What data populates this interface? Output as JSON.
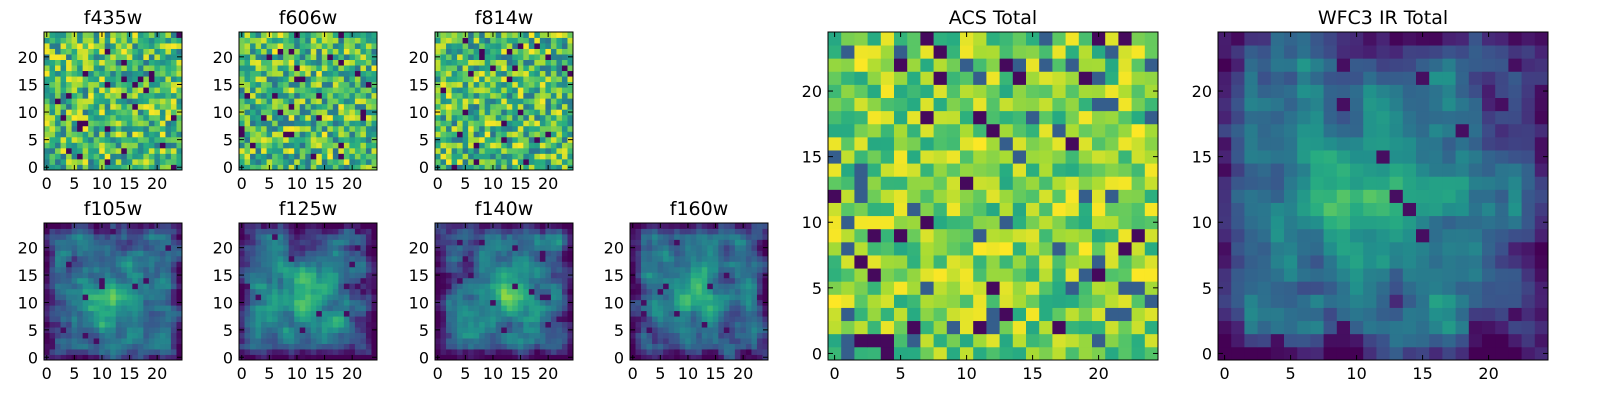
{
  "figure": {
    "description_free": true
  },
  "colors": {
    "background": "#ffffff",
    "frame": "#000000",
    "colormap": "viridis"
  },
  "chart_data": [
    {
      "type": "heatmap",
      "id": "f435w",
      "title": "f435w",
      "grid": [
        25,
        25
      ],
      "xlim": [
        -0.5,
        24.5
      ],
      "ylim": [
        -0.5,
        24.5
      ],
      "xticks": [
        0,
        5,
        10,
        15,
        20
      ],
      "yticks": [
        0,
        5,
        10,
        15,
        20
      ],
      "xtick_labels": [
        "0",
        "5",
        "10",
        "15",
        "20"
      ],
      "ytick_labels": [
        "0",
        "5",
        "10",
        "15",
        "20"
      ],
      "pattern": "uniform-noise",
      "value_range": [
        0,
        1
      ],
      "seed": 11
    },
    {
      "type": "heatmap",
      "id": "f606w",
      "title": "f606w",
      "grid": [
        25,
        25
      ],
      "xlim": [
        -0.5,
        24.5
      ],
      "ylim": [
        -0.5,
        24.5
      ],
      "xticks": [
        0,
        5,
        10,
        15,
        20
      ],
      "yticks": [
        0,
        5,
        10,
        15,
        20
      ],
      "xtick_labels": [
        "0",
        "5",
        "10",
        "15",
        "20"
      ],
      "ytick_labels": [
        "0",
        "5",
        "10",
        "15",
        "20"
      ],
      "pattern": "uniform-noise",
      "value_range": [
        0,
        1
      ],
      "seed": 23
    },
    {
      "type": "heatmap",
      "id": "f814w",
      "title": "f814w",
      "grid": [
        25,
        25
      ],
      "xlim": [
        -0.5,
        24.5
      ],
      "ylim": [
        -0.5,
        24.5
      ],
      "xticks": [
        0,
        5,
        10,
        15,
        20
      ],
      "yticks": [
        0,
        5,
        10,
        15,
        20
      ],
      "xtick_labels": [
        "0",
        "5",
        "10",
        "15",
        "20"
      ],
      "ytick_labels": [
        "0",
        "5",
        "10",
        "15",
        "20"
      ],
      "pattern": "uniform-noise",
      "value_range": [
        0,
        1
      ],
      "seed": 37
    },
    {
      "type": "heatmap",
      "id": "f105w",
      "title": "f105w",
      "grid": [
        25,
        25
      ],
      "xlim": [
        -0.5,
        24.5
      ],
      "ylim": [
        -0.5,
        24.5
      ],
      "xticks": [
        0,
        5,
        10,
        15,
        20
      ],
      "yticks": [
        0,
        5,
        10,
        15,
        20
      ],
      "xtick_labels": [
        "0",
        "5",
        "10",
        "15",
        "20"
      ],
      "ytick_labels": [
        "0",
        "5",
        "10",
        "15",
        "20"
      ],
      "pattern": "smoothed-noise-with-central-source",
      "source_center": [
        12,
        10
      ],
      "value_range": [
        0,
        1
      ],
      "seed": 41
    },
    {
      "type": "heatmap",
      "id": "f125w",
      "title": "f125w",
      "grid": [
        25,
        25
      ],
      "xlim": [
        -0.5,
        24.5
      ],
      "ylim": [
        -0.5,
        24.5
      ],
      "xticks": [
        0,
        5,
        10,
        15,
        20
      ],
      "yticks": [
        0,
        5,
        10,
        15,
        20
      ],
      "xtick_labels": [
        "0",
        "5",
        "10",
        "15",
        "20"
      ],
      "ytick_labels": [
        "0",
        "5",
        "10",
        "15",
        "20"
      ],
      "pattern": "smoothed-noise-with-central-source",
      "source_center": [
        12,
        11
      ],
      "value_range": [
        0,
        1
      ],
      "seed": 53
    },
    {
      "type": "heatmap",
      "id": "f140w",
      "title": "f140w",
      "grid": [
        25,
        25
      ],
      "xlim": [
        -0.5,
        24.5
      ],
      "ylim": [
        -0.5,
        24.5
      ],
      "xticks": [
        0,
        5,
        10,
        15,
        20
      ],
      "yticks": [
        0,
        5,
        10,
        15,
        20
      ],
      "xtick_labels": [
        "0",
        "5",
        "10",
        "15",
        "20"
      ],
      "ytick_labels": [
        "0",
        "5",
        "10",
        "15",
        "20"
      ],
      "pattern": "smoothed-noise-with-central-source",
      "source_center": [
        13,
        12
      ],
      "value_range": [
        0,
        1
      ],
      "seed": 67
    },
    {
      "type": "heatmap",
      "id": "f160w",
      "title": "f160w",
      "grid": [
        25,
        25
      ],
      "xlim": [
        -0.5,
        24.5
      ],
      "ylim": [
        -0.5,
        24.5
      ],
      "xticks": [
        0,
        5,
        10,
        15,
        20
      ],
      "yticks": [
        0,
        5,
        10,
        15,
        20
      ],
      "xtick_labels": [
        "0",
        "5",
        "10",
        "15",
        "20"
      ],
      "ytick_labels": [
        "0",
        "5",
        "10",
        "15",
        "20"
      ],
      "pattern": "smoothed-noise-with-central-source",
      "source_center": [
        11,
        12
      ],
      "value_range": [
        0,
        1
      ],
      "seed": 79
    },
    {
      "type": "heatmap",
      "id": "acs_total",
      "title": "ACS Total",
      "grid": [
        25,
        25
      ],
      "xlim": [
        -0.5,
        24.5
      ],
      "ylim": [
        -0.5,
        24.5
      ],
      "xticks": [
        0,
        5,
        10,
        15,
        20
      ],
      "yticks": [
        0,
        5,
        10,
        15,
        20
      ],
      "xtick_labels": [
        "0",
        "5",
        "10",
        "15",
        "20"
      ],
      "ytick_labels": [
        "0",
        "5",
        "10",
        "15",
        "20"
      ],
      "pattern": "bright-noise-with-dark-pixels",
      "value_range": [
        0,
        1
      ],
      "seed": 97
    },
    {
      "type": "heatmap",
      "id": "wfc3_ir_total",
      "title": "WFC3 IR Total",
      "grid": [
        25,
        25
      ],
      "xlim": [
        -0.5,
        24.5
      ],
      "ylim": [
        -0.5,
        24.5
      ],
      "xticks": [
        0,
        5,
        10,
        15,
        20
      ],
      "yticks": [
        0,
        5,
        10,
        15,
        20
      ],
      "xtick_labels": [
        "0",
        "5",
        "10",
        "15",
        "20"
      ],
      "ytick_labels": [
        "0",
        "5",
        "10",
        "15",
        "20"
      ],
      "pattern": "smoothed-noise-with-central-source",
      "source_center": [
        12,
        12
      ],
      "value_range": [
        0,
        1
      ],
      "seed": 131
    }
  ]
}
